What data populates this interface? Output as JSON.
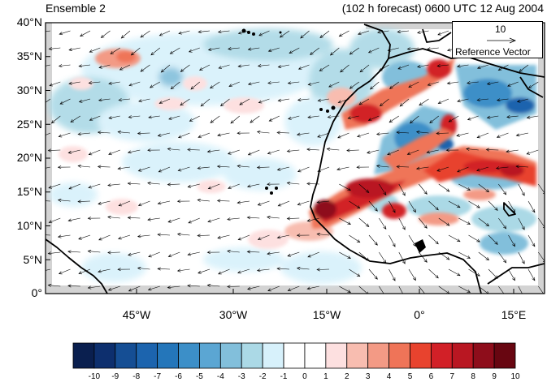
{
  "title_left": "Ensemble 2",
  "title_right": "(102 h forecast) 0600 UTC 12 Aug 2004",
  "lat_labels": [
    "40°N",
    "35°N",
    "30°N",
    "25°N",
    "20°N",
    "15°N",
    "10°N",
    "5°N",
    "0°"
  ],
  "lon_labels": [
    "45°W",
    "30°W",
    "15°W",
    "0°",
    "15°E"
  ],
  "reference_vector": {
    "magnitude": "10",
    "label": "Reference Vector"
  },
  "colorbar": {
    "labels": [
      "-10",
      "-9",
      "-8",
      "-7",
      "-6",
      "-5",
      "-4",
      "-3",
      "-2",
      "-1",
      "0",
      "1",
      "2",
      "3",
      "4",
      "5",
      "6",
      "7",
      "8",
      "9",
      "10"
    ],
    "colors": [
      "#0a1f4f",
      "#0d2f6e",
      "#154e94",
      "#1c64ae",
      "#2476ba",
      "#3c8fc8",
      "#5ba6d3",
      "#82bfdb",
      "#abd9e6",
      "#d7f1fb",
      "#ffffff",
      "#ffffff",
      "#fde0e0",
      "#f8bdb0",
      "#f39a85",
      "#ef7458",
      "#e8432e",
      "#d22027",
      "#b91722",
      "#8e0d1b",
      "#680611"
    ]
  },
  "chart_data": {
    "type": "heatmap",
    "title": "Ensemble 2",
    "subtitle": "(102 h forecast) 0600 UTC 12 Aug 2004",
    "lat_range": [
      0,
      40
    ],
    "lon_range": [
      -64,
      20
    ],
    "lat_ticks": [
      40,
      35,
      30,
      25,
      20,
      15,
      10,
      5,
      0
    ],
    "lon_ticks": [
      -45,
      -30,
      -15,
      0,
      15
    ],
    "color_levels": [
      -10,
      -9,
      -8,
      -7,
      -6,
      -5,
      -4,
      -3,
      -2,
      -1,
      0,
      1,
      2,
      3,
      4,
      5,
      6,
      7,
      8,
      9,
      10
    ],
    "features": [
      {
        "name": "positive anomaly band",
        "lon": [
          -16,
          15
        ],
        "lat": [
          12,
          22
        ],
        "max": 10
      },
      {
        "name": "positive anomaly NW Africa",
        "lon": [
          -12,
          5
        ],
        "lat": [
          26,
          36
        ],
        "max": 8
      },
      {
        "name": "negative anomaly Sahara",
        "lon": [
          -8,
          5
        ],
        "lat": [
          17,
          27
        ],
        "min": -7
      },
      {
        "name": "negative anomaly N Africa",
        "lon": [
          2,
          18
        ],
        "lat": [
          27,
          35
        ],
        "min": -6
      }
    ],
    "reference_vector": 10
  }
}
